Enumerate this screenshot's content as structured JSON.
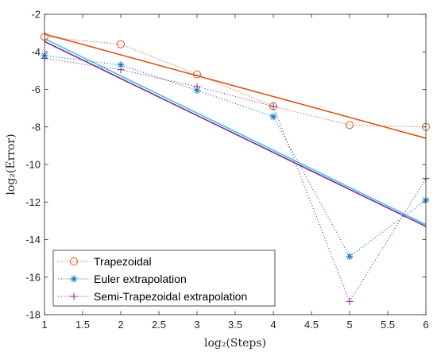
{
  "chart_data": {
    "type": "line",
    "xlabel": "log₂(Steps)",
    "ylabel": "log₂(Error)",
    "xlim": [
      1,
      6
    ],
    "ylim": [
      -18,
      -2
    ],
    "xticks": [
      1,
      1.5,
      2,
      2.5,
      3,
      3.5,
      4,
      4.5,
      5,
      5.5,
      6
    ],
    "yticks": [
      -18,
      -16,
      -14,
      -12,
      -10,
      -8,
      -6,
      -4,
      -2
    ],
    "xtick_labels": [
      "1",
      "1.5",
      "2",
      "2.5",
      "3",
      "3.5",
      "4",
      "4.5",
      "5",
      "5.5",
      "6"
    ],
    "ytick_labels": [
      "-18",
      "-16",
      "-14",
      "-12",
      "-10",
      "-8",
      "-6",
      "-4",
      "-2"
    ],
    "grid": false,
    "legend_position": "bottom-left",
    "x": [
      1,
      2,
      3,
      4,
      5,
      6
    ],
    "series": [
      {
        "name": "Trapezoidal",
        "marker": "circle",
        "line": "dotted",
        "color": "#D95319",
        "values": [
          -3.2,
          -3.6,
          -5.2,
          -6.9,
          -7.9,
          -8.0
        ],
        "fit": {
          "x": [
            1,
            6
          ],
          "y": [
            -3.05,
            -8.6
          ]
        }
      },
      {
        "name": "Euler extrapolation",
        "marker": "asterisk",
        "line": "dotted",
        "color": "#0072BD",
        "values": [
          -4.2,
          -4.7,
          -6.05,
          -7.45,
          -14.9,
          -11.9
        ],
        "fit": {
          "x": [
            1,
            6
          ],
          "y": [
            -3.3,
            -13.2
          ]
        }
      },
      {
        "name": "Semi-Trapezoidal extrapolation",
        "marker": "plus",
        "line": "dotted",
        "color": "#7E2F8E",
        "values": [
          -4.35,
          -4.95,
          -5.85,
          -6.9,
          -17.3,
          -10.75
        ],
        "fit": {
          "x": [
            1,
            6
          ],
          "y": [
            -3.45,
            -13.3
          ]
        }
      }
    ],
    "fit_line_colors": [
      "#D95319",
      "#4DBEEE",
      "#7E2F8E"
    ]
  }
}
